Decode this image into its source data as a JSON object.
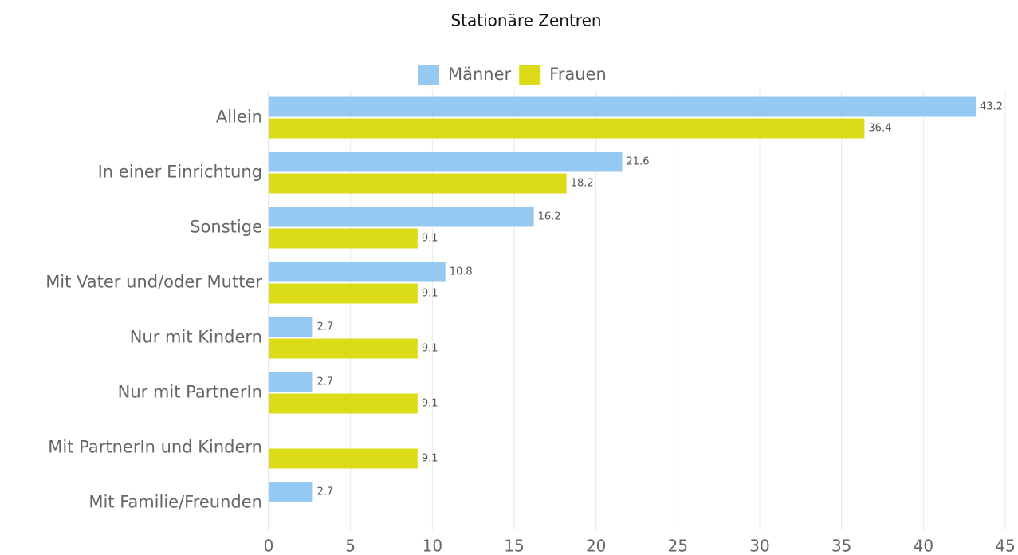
{
  "chart_data": {
    "type": "bar",
    "orientation": "horizontal",
    "title": "Stationäre Zentren",
    "categories": [
      "Allein",
      "In einer Einrichtung",
      "Sonstige",
      "Mit Vater und/oder Mutter",
      "Nur mit Kindern",
      "Nur mit PartnerIn",
      "Mit PartnerIn und Kindern",
      "Mit Familie/Freunden"
    ],
    "series": [
      {
        "name": "Männer",
        "color": "#95c9f1",
        "values": [
          43.2,
          21.6,
          16.2,
          10.8,
          2.7,
          2.7,
          null,
          2.7
        ]
      },
      {
        "name": "Frauen",
        "color": "#dbdb18",
        "values": [
          36.4,
          18.2,
          9.1,
          9.1,
          9.1,
          9.1,
          9.1,
          null
        ]
      }
    ],
    "xlim": [
      0,
      45
    ],
    "xticks": [
      0,
      5,
      10,
      15,
      20,
      25,
      30,
      35,
      40,
      45
    ],
    "grid": true,
    "legend": "top"
  }
}
